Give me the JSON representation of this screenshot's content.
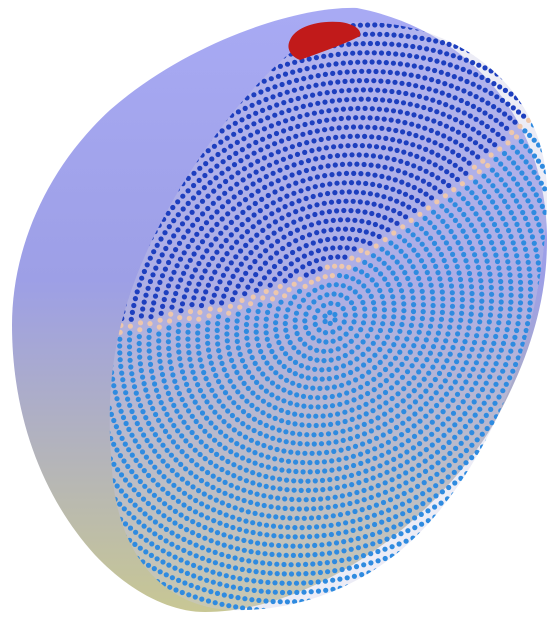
{
  "scene": {
    "subject": "hemisphere-cutaway-dot-rings",
    "colors": {
      "background": "#ffffff",
      "shell_top": "#a8aaf4",
      "shell_mid": "#9d9fe6",
      "shell_bottom": "#c8c794",
      "dot_dark": "#1d3fbf",
      "dot_light": "#2f8be0",
      "dot_boundary": "#edc7ad",
      "cap": "#c11a1a"
    },
    "regions": [
      {
        "name": "upper-region",
        "color_key": "dot_dark"
      },
      {
        "name": "lower-region",
        "color_key": "dot_light"
      },
      {
        "name": "boundary-band",
        "color_key": "dot_boundary"
      },
      {
        "name": "top-cap",
        "color_key": "cap"
      }
    ]
  }
}
